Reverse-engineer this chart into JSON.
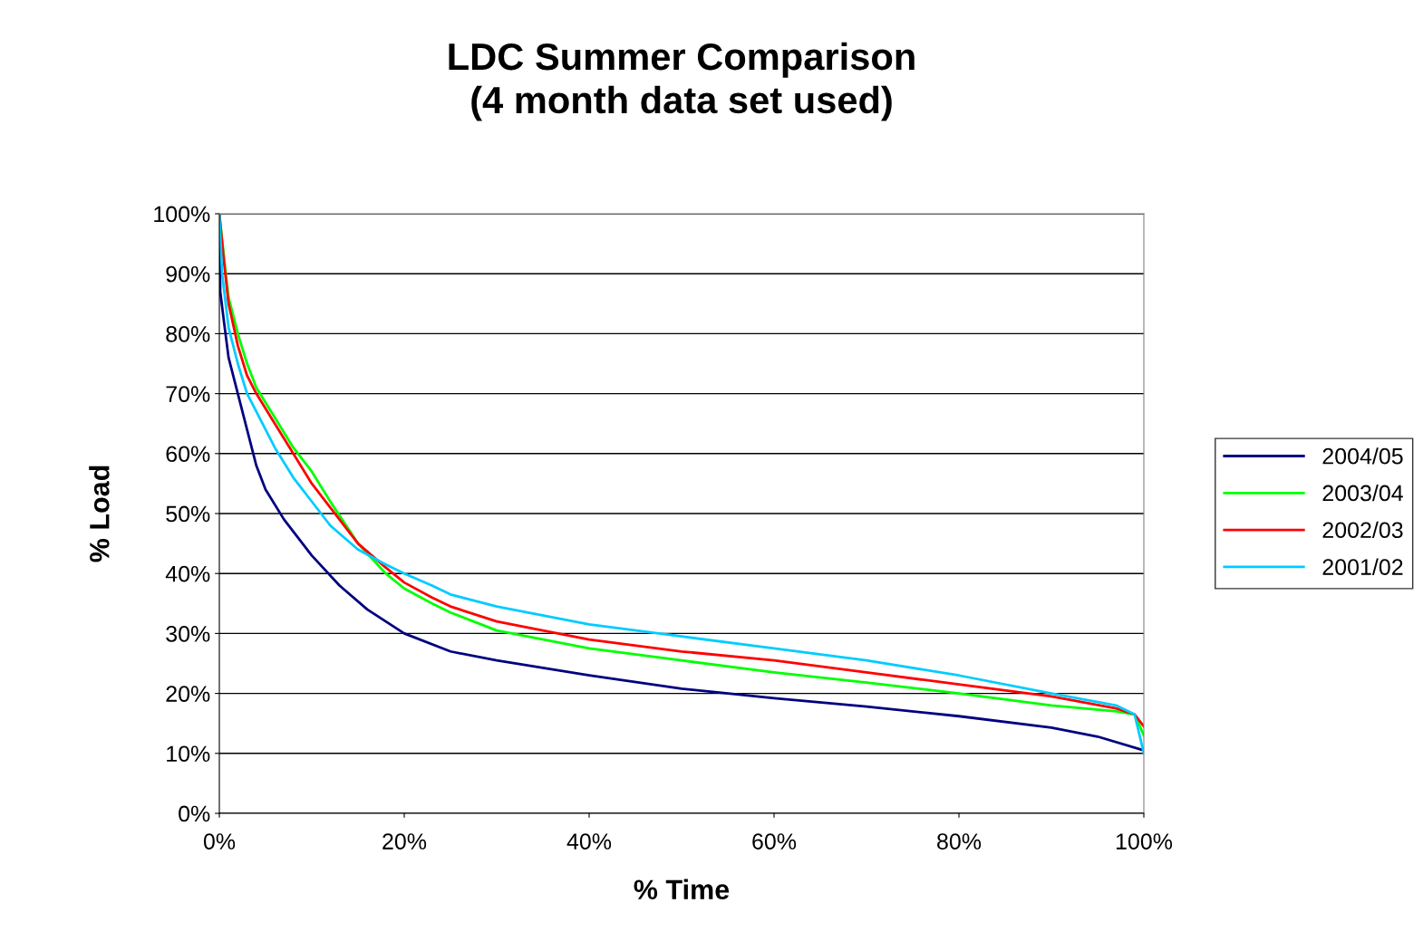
{
  "chart_data": {
    "type": "line",
    "title": "LDC Summer Comparison\n(4 month data set used)",
    "xlabel": "% Time",
    "ylabel": "% Load",
    "xlim": [
      0,
      100
    ],
    "ylim": [
      0,
      100
    ],
    "xticks": [
      {
        "value": 0,
        "label": "0%"
      },
      {
        "value": 20,
        "label": "20%"
      },
      {
        "value": 40,
        "label": "40%"
      },
      {
        "value": 60,
        "label": "60%"
      },
      {
        "value": 80,
        "label": "80%"
      },
      {
        "value": 100,
        "label": "100%"
      }
    ],
    "yticks": [
      {
        "value": 0,
        "label": "0%"
      },
      {
        "value": 10,
        "label": "10%"
      },
      {
        "value": 20,
        "label": "20%"
      },
      {
        "value": 30,
        "label": "30%"
      },
      {
        "value": 40,
        "label": "40%"
      },
      {
        "value": 50,
        "label": "50%"
      },
      {
        "value": 60,
        "label": "60%"
      },
      {
        "value": 70,
        "label": "70%"
      },
      {
        "value": 80,
        "label": "80%"
      },
      {
        "value": 90,
        "label": "90%"
      },
      {
        "value": 100,
        "label": "100%"
      }
    ],
    "grid": "y",
    "legend": "right",
    "marker": "none",
    "line_style": "solid",
    "series": [
      {
        "name": "2004/05",
        "color": "#000080",
        "x": [
          0,
          0.1,
          0.5,
          1,
          2,
          3,
          4,
          5,
          7,
          10,
          13,
          16,
          20,
          25,
          30,
          40,
          50,
          60,
          70,
          80,
          90,
          95,
          100
        ],
        "values": [
          100,
          87,
          82,
          76,
          70,
          64,
          58,
          54,
          49,
          43,
          38,
          34,
          30,
          27,
          25.5,
          23,
          20.8,
          19.2,
          17.8,
          16.2,
          14.3,
          12.8,
          10.5
        ]
      },
      {
        "name": "2003/04",
        "color": "#00ff00",
        "x": [
          0,
          0.7,
          1,
          2,
          3,
          4,
          6,
          8,
          10,
          12,
          15,
          18,
          20,
          23,
          25,
          30,
          40,
          50,
          60,
          70,
          80,
          90,
          97,
          99,
          100
        ],
        "values": [
          100,
          90,
          86,
          80,
          75,
          71,
          66,
          61,
          57,
          52,
          45,
          40,
          37.5,
          35,
          33.5,
          30.5,
          27.5,
          25.5,
          23.5,
          21.8,
          20,
          18,
          17,
          16.5,
          13
        ]
      },
      {
        "name": "2002/03",
        "color": "#ff0000",
        "x": [
          0,
          0.5,
          1,
          2,
          3,
          4,
          6,
          8,
          10,
          12,
          15,
          18,
          20,
          23,
          25,
          30,
          40,
          50,
          60,
          70,
          80,
          90,
          97,
          99,
          100
        ],
        "values": [
          100,
          92,
          85,
          78,
          73,
          70,
          65,
          60,
          55,
          51,
          45,
          41,
          38.5,
          36,
          34.5,
          32,
          29,
          27,
          25.5,
          23.5,
          21.5,
          19.5,
          17.5,
          16.5,
          14.5
        ]
      },
      {
        "name": "2001/02",
        "color": "#00ccff",
        "x": [
          0,
          0.3,
          1,
          2,
          3,
          4,
          6,
          8,
          10,
          12,
          15,
          18,
          20,
          23,
          25,
          30,
          40,
          50,
          60,
          70,
          80,
          90,
          97,
          99,
          100
        ],
        "values": [
          100,
          90,
          81,
          75,
          70,
          67,
          61,
          56,
          52,
          48,
          44,
          41.5,
          40,
          38,
          36.5,
          34.5,
          31.5,
          29.5,
          27.5,
          25.5,
          23,
          20,
          18,
          16.5,
          10
        ]
      }
    ]
  }
}
